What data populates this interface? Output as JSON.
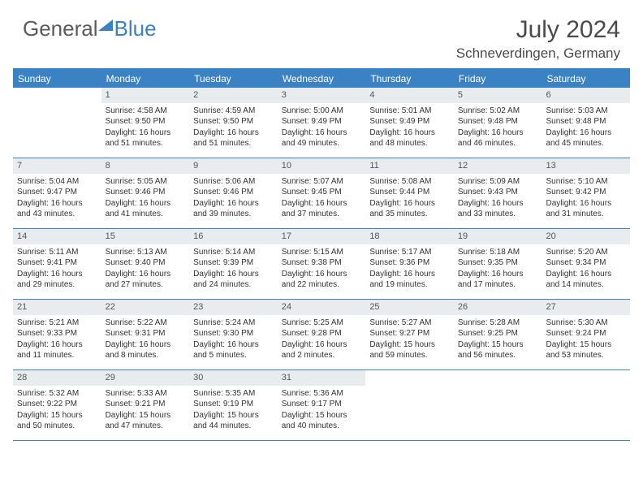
{
  "logo": {
    "part1": "General",
    "part2": "Blue"
  },
  "title": {
    "monthYear": "July 2024",
    "location": "Schneverdingen, Germany"
  },
  "colors": {
    "headerBlue": "#3b82c4",
    "dateBg": "#e8ecef",
    "textDark": "#333333",
    "textGray": "#5a5a5a",
    "titleGray": "#4a4a4a"
  },
  "dayNames": [
    "Sunday",
    "Monday",
    "Tuesday",
    "Wednesday",
    "Thursday",
    "Friday",
    "Saturday"
  ],
  "weeks": [
    [
      {
        "date": "",
        "sunrise": "",
        "sunset": "",
        "daylight": ""
      },
      {
        "date": "1",
        "sunrise": "Sunrise: 4:58 AM",
        "sunset": "Sunset: 9:50 PM",
        "daylight": "Daylight: 16 hours and 51 minutes."
      },
      {
        "date": "2",
        "sunrise": "Sunrise: 4:59 AM",
        "sunset": "Sunset: 9:50 PM",
        "daylight": "Daylight: 16 hours and 51 minutes."
      },
      {
        "date": "3",
        "sunrise": "Sunrise: 5:00 AM",
        "sunset": "Sunset: 9:49 PM",
        "daylight": "Daylight: 16 hours and 49 minutes."
      },
      {
        "date": "4",
        "sunrise": "Sunrise: 5:01 AM",
        "sunset": "Sunset: 9:49 PM",
        "daylight": "Daylight: 16 hours and 48 minutes."
      },
      {
        "date": "5",
        "sunrise": "Sunrise: 5:02 AM",
        "sunset": "Sunset: 9:48 PM",
        "daylight": "Daylight: 16 hours and 46 minutes."
      },
      {
        "date": "6",
        "sunrise": "Sunrise: 5:03 AM",
        "sunset": "Sunset: 9:48 PM",
        "daylight": "Daylight: 16 hours and 45 minutes."
      }
    ],
    [
      {
        "date": "7",
        "sunrise": "Sunrise: 5:04 AM",
        "sunset": "Sunset: 9:47 PM",
        "daylight": "Daylight: 16 hours and 43 minutes."
      },
      {
        "date": "8",
        "sunrise": "Sunrise: 5:05 AM",
        "sunset": "Sunset: 9:46 PM",
        "daylight": "Daylight: 16 hours and 41 minutes."
      },
      {
        "date": "9",
        "sunrise": "Sunrise: 5:06 AM",
        "sunset": "Sunset: 9:46 PM",
        "daylight": "Daylight: 16 hours and 39 minutes."
      },
      {
        "date": "10",
        "sunrise": "Sunrise: 5:07 AM",
        "sunset": "Sunset: 9:45 PM",
        "daylight": "Daylight: 16 hours and 37 minutes."
      },
      {
        "date": "11",
        "sunrise": "Sunrise: 5:08 AM",
        "sunset": "Sunset: 9:44 PM",
        "daylight": "Daylight: 16 hours and 35 minutes."
      },
      {
        "date": "12",
        "sunrise": "Sunrise: 5:09 AM",
        "sunset": "Sunset: 9:43 PM",
        "daylight": "Daylight: 16 hours and 33 minutes."
      },
      {
        "date": "13",
        "sunrise": "Sunrise: 5:10 AM",
        "sunset": "Sunset: 9:42 PM",
        "daylight": "Daylight: 16 hours and 31 minutes."
      }
    ],
    [
      {
        "date": "14",
        "sunrise": "Sunrise: 5:11 AM",
        "sunset": "Sunset: 9:41 PM",
        "daylight": "Daylight: 16 hours and 29 minutes."
      },
      {
        "date": "15",
        "sunrise": "Sunrise: 5:13 AM",
        "sunset": "Sunset: 9:40 PM",
        "daylight": "Daylight: 16 hours and 27 minutes."
      },
      {
        "date": "16",
        "sunrise": "Sunrise: 5:14 AM",
        "sunset": "Sunset: 9:39 PM",
        "daylight": "Daylight: 16 hours and 24 minutes."
      },
      {
        "date": "17",
        "sunrise": "Sunrise: 5:15 AM",
        "sunset": "Sunset: 9:38 PM",
        "daylight": "Daylight: 16 hours and 22 minutes."
      },
      {
        "date": "18",
        "sunrise": "Sunrise: 5:17 AM",
        "sunset": "Sunset: 9:36 PM",
        "daylight": "Daylight: 16 hours and 19 minutes."
      },
      {
        "date": "19",
        "sunrise": "Sunrise: 5:18 AM",
        "sunset": "Sunset: 9:35 PM",
        "daylight": "Daylight: 16 hours and 17 minutes."
      },
      {
        "date": "20",
        "sunrise": "Sunrise: 5:20 AM",
        "sunset": "Sunset: 9:34 PM",
        "daylight": "Daylight: 16 hours and 14 minutes."
      }
    ],
    [
      {
        "date": "21",
        "sunrise": "Sunrise: 5:21 AM",
        "sunset": "Sunset: 9:33 PM",
        "daylight": "Daylight: 16 hours and 11 minutes."
      },
      {
        "date": "22",
        "sunrise": "Sunrise: 5:22 AM",
        "sunset": "Sunset: 9:31 PM",
        "daylight": "Daylight: 16 hours and 8 minutes."
      },
      {
        "date": "23",
        "sunrise": "Sunrise: 5:24 AM",
        "sunset": "Sunset: 9:30 PM",
        "daylight": "Daylight: 16 hours and 5 minutes."
      },
      {
        "date": "24",
        "sunrise": "Sunrise: 5:25 AM",
        "sunset": "Sunset: 9:28 PM",
        "daylight": "Daylight: 16 hours and 2 minutes."
      },
      {
        "date": "25",
        "sunrise": "Sunrise: 5:27 AM",
        "sunset": "Sunset: 9:27 PM",
        "daylight": "Daylight: 15 hours and 59 minutes."
      },
      {
        "date": "26",
        "sunrise": "Sunrise: 5:28 AM",
        "sunset": "Sunset: 9:25 PM",
        "daylight": "Daylight: 15 hours and 56 minutes."
      },
      {
        "date": "27",
        "sunrise": "Sunrise: 5:30 AM",
        "sunset": "Sunset: 9:24 PM",
        "daylight": "Daylight: 15 hours and 53 minutes."
      }
    ],
    [
      {
        "date": "28",
        "sunrise": "Sunrise: 5:32 AM",
        "sunset": "Sunset: 9:22 PM",
        "daylight": "Daylight: 15 hours and 50 minutes."
      },
      {
        "date": "29",
        "sunrise": "Sunrise: 5:33 AM",
        "sunset": "Sunset: 9:21 PM",
        "daylight": "Daylight: 15 hours and 47 minutes."
      },
      {
        "date": "30",
        "sunrise": "Sunrise: 5:35 AM",
        "sunset": "Sunset: 9:19 PM",
        "daylight": "Daylight: 15 hours and 44 minutes."
      },
      {
        "date": "31",
        "sunrise": "Sunrise: 5:36 AM",
        "sunset": "Sunset: 9:17 PM",
        "daylight": "Daylight: 15 hours and 40 minutes."
      },
      {
        "date": "",
        "sunrise": "",
        "sunset": "",
        "daylight": ""
      },
      {
        "date": "",
        "sunrise": "",
        "sunset": "",
        "daylight": ""
      },
      {
        "date": "",
        "sunrise": "",
        "sunset": "",
        "daylight": ""
      }
    ]
  ]
}
